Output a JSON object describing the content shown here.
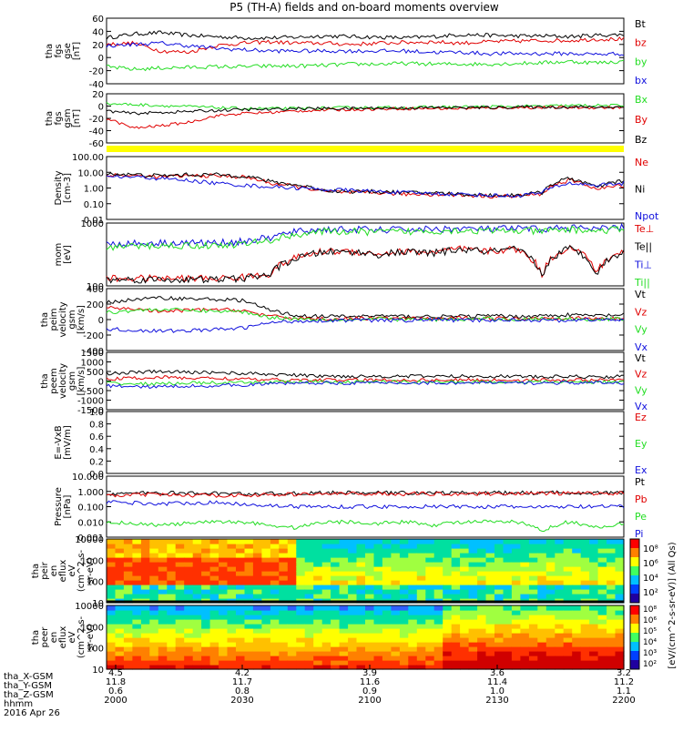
{
  "title": "P5 (TH-A) fields and on-board moments overview",
  "colors": {
    "black": "#000000",
    "red": "#e00000",
    "green": "#22dd22",
    "blue": "#1010dd",
    "yellow": "#ffff00"
  },
  "chart_data": [
    {
      "type": "line",
      "panel": "fgs_gse",
      "ylabel": [
        "tha",
        "fgs",
        "gse",
        "[nT]"
      ],
      "yticks": [
        "60",
        "40",
        "20",
        "0",
        "-20",
        "-40"
      ],
      "ylim": [
        -40,
        60
      ],
      "series": [
        {
          "name": "Bt",
          "color": "#000000",
          "values": [
            30,
            36,
            38,
            34,
            32,
            30,
            30,
            31,
            33,
            32,
            31,
            30,
            32,
            35,
            34,
            33,
            33,
            32,
            34,
            35
          ]
        },
        {
          "name": "bz",
          "color": "#e00000",
          "values": [
            20,
            22,
            10,
            8,
            18,
            22,
            24,
            22,
            22,
            20,
            22,
            23,
            24,
            22,
            24,
            25,
            26,
            26,
            28,
            28
          ]
        },
        {
          "name": "by",
          "color": "#22dd22",
          "values": [
            -14,
            -18,
            -16,
            -15,
            -14,
            -14,
            -13,
            -13,
            -12,
            -10,
            -10,
            -9,
            -10,
            -10,
            -10,
            -9,
            -8,
            -6,
            -8,
            -6
          ]
        },
        {
          "name": "bx",
          "color": "#1010dd",
          "values": [
            18,
            20,
            22,
            18,
            14,
            12,
            10,
            10,
            10,
            10,
            10,
            10,
            8,
            8,
            6,
            6,
            6,
            6,
            5,
            6
          ]
        }
      ]
    },
    {
      "type": "line",
      "panel": "fgs_gsm",
      "ylabel": [
        "tha",
        "fgs",
        "gsm",
        "[nT]"
      ],
      "yticks": [
        "20",
        "0",
        "-20",
        "-40",
        "-60"
      ],
      "ylim": [
        -70,
        30
      ],
      "series": [
        {
          "name": "Bx",
          "color": "#22dd22",
          "values": [
            10,
            8,
            6,
            4,
            2,
            0,
            0,
            0,
            1,
            2,
            2,
            2,
            3,
            3,
            4,
            4,
            5,
            6,
            6,
            6
          ]
        },
        {
          "name": "By",
          "color": "#e00000",
          "values": [
            -20,
            -40,
            -35,
            -28,
            -15,
            -10,
            -8,
            -5,
            -3,
            -2,
            -1,
            0,
            0,
            0,
            1,
            2,
            2,
            2,
            2,
            2
          ]
        },
        {
          "name": "Bz",
          "color": "#000000",
          "values": [
            -5,
            -10,
            -8,
            -6,
            -4,
            -2,
            -2,
            0,
            0,
            0,
            1,
            1,
            2,
            2,
            2,
            3,
            3,
            3,
            3,
            3
          ]
        }
      ]
    },
    {
      "type": "line",
      "panel": "density",
      "ylabel": [
        "Density",
        "[cm-3]"
      ],
      "yticks": [
        "100.00",
        "10.00",
        "1.00",
        "0.10",
        "0.01"
      ],
      "scale": "log",
      "ylim": [
        0.01,
        100
      ],
      "series": [
        {
          "name": "Ne",
          "color": "#e00000",
          "values": [
            7,
            6,
            5,
            6,
            6,
            5,
            2,
            1.2,
            0.6,
            0.5,
            0.5,
            0.4,
            0.4,
            0.35,
            0.3,
            0.3,
            0.4,
            3,
            0.8,
            1.5
          ]
        },
        {
          "name": "Ni",
          "color": "#000000",
          "values": [
            8,
            7,
            6,
            7,
            7,
            6,
            2.5,
            1.5,
            0.7,
            0.6,
            0.6,
            0.5,
            0.5,
            0.4,
            0.35,
            0.35,
            0.5,
            4,
            1,
            3
          ]
        },
        {
          "name": "Npot",
          "color": "#1010dd",
          "values": [
            5,
            5,
            4,
            3,
            2,
            1.5,
            1.2,
            1,
            0.8,
            0.7,
            0.6,
            0.5,
            0.45,
            0.4,
            0.35,
            0.3,
            0.5,
            2,
            1.5,
            2
          ]
        }
      ]
    },
    {
      "type": "line",
      "panel": "mom_temp",
      "ylabel": [
        "mom",
        "[eV]"
      ],
      "yticks": [
        "1000",
        "100"
      ],
      "scale": "log",
      "ylim": [
        30,
        5000
      ],
      "series": [
        {
          "name": "Te⊥",
          "color": "#e00000",
          "values": [
            55,
            55,
            55,
            55,
            55,
            60,
            80,
            300,
            500,
            500,
            400,
            500,
            450,
            600,
            500,
            600,
            60,
            700,
            80,
            500
          ]
        },
        {
          "name": "Te||",
          "color": "#000000",
          "values": [
            50,
            50,
            50,
            50,
            50,
            55,
            75,
            280,
            480,
            480,
            380,
            480,
            430,
            580,
            480,
            580,
            55,
            650,
            75,
            480
          ]
        },
        {
          "name": "Ti⊥",
          "color": "#1010dd",
          "values": [
            900,
            950,
            1000,
            1000,
            1000,
            1100,
            1500,
            2500,
            3000,
            3000,
            2800,
            3000,
            3000,
            3200,
            3000,
            3200,
            3000,
            3500,
            3000,
            3500
          ]
        },
        {
          "name": "Ti||",
          "color": "#22dd22",
          "values": [
            700,
            750,
            800,
            800,
            800,
            900,
            1200,
            2000,
            2500,
            2500,
            2400,
            2500,
            2600,
            2800,
            2600,
            2700,
            2500,
            3000,
            2600,
            3000
          ]
        }
      ]
    },
    {
      "type": "line",
      "panel": "peim_velocity",
      "ylabel": [
        "tha",
        "peim",
        "velocity",
        "gsm",
        "[km/s]"
      ],
      "yticks": [
        "400",
        "200",
        "0",
        "-200",
        "-400"
      ],
      "ylim": [
        -400,
        400
      ],
      "series": [
        {
          "name": "Vt",
          "color": "#000000",
          "values": [
            220,
            260,
            280,
            270,
            260,
            250,
            120,
            50,
            40,
            40,
            50,
            40,
            40,
            40,
            50,
            40,
            50,
            60,
            50,
            60
          ]
        },
        {
          "name": "Vz",
          "color": "#e00000",
          "values": [
            150,
            140,
            100,
            120,
            130,
            120,
            40,
            20,
            10,
            10,
            20,
            10,
            10,
            20,
            20,
            10,
            20,
            20,
            10,
            20
          ]
        },
        {
          "name": "Vy",
          "color": "#22dd22",
          "values": [
            90,
            120,
            130,
            120,
            110,
            100,
            30,
            10,
            0,
            0,
            10,
            0,
            0,
            0,
            10,
            0,
            10,
            10,
            0,
            10
          ]
        },
        {
          "name": "Vx",
          "color": "#1010dd",
          "values": [
            -120,
            -140,
            -150,
            -140,
            -130,
            -110,
            -40,
            -20,
            -10,
            -10,
            -10,
            -10,
            0,
            -10,
            -10,
            0,
            -10,
            -10,
            0,
            -10
          ]
        }
      ]
    },
    {
      "type": "line",
      "panel": "peem_velocity",
      "ylabel": [
        "tha",
        "peem",
        "velocity",
        "gsm",
        "[km/s]"
      ],
      "yticks": [
        "1500",
        "1000",
        "500",
        "0",
        "-500",
        "-1000",
        "-1500"
      ],
      "ylim": [
        -1500,
        1500
      ],
      "series": [
        {
          "name": "Vt",
          "color": "#000000",
          "values": [
            400,
            450,
            500,
            450,
            450,
            400,
            350,
            300,
            250,
            250,
            250,
            250,
            250,
            250,
            250,
            250,
            200,
            250,
            200,
            250
          ]
        },
        {
          "name": "Vz",
          "color": "#e00000",
          "values": [
            100,
            150,
            200,
            150,
            150,
            100,
            50,
            50,
            50,
            50,
            50,
            50,
            50,
            50,
            50,
            50,
            50,
            50,
            50,
            50
          ]
        },
        {
          "name": "Vy",
          "color": "#22dd22",
          "values": [
            -100,
            -150,
            -150,
            -100,
            -100,
            -100,
            -50,
            -50,
            -50,
            -50,
            -50,
            -50,
            -50,
            -50,
            -50,
            -50,
            -50,
            -50,
            -50,
            -50
          ]
        },
        {
          "name": "Vx",
          "color": "#1010dd",
          "values": [
            -250,
            -300,
            -300,
            -250,
            -250,
            -200,
            -150,
            -100,
            -100,
            -100,
            -100,
            -100,
            -100,
            -100,
            -100,
            -100,
            -100,
            -100,
            -100,
            -100
          ]
        }
      ]
    },
    {
      "type": "line",
      "panel": "e_field",
      "ylabel": [
        "E=-VxB",
        "[mV/m]"
      ],
      "yticks": [
        "1.0",
        "0.8",
        "0.6",
        "0.4",
        "0.2",
        "0.0"
      ],
      "ylim": [
        0,
        1
      ],
      "series": [
        {
          "name": "Ez",
          "color": "#e00000",
          "values": []
        },
        {
          "name": "Ey",
          "color": "#22dd22",
          "values": []
        },
        {
          "name": "Ex",
          "color": "#1010dd",
          "values": []
        }
      ]
    },
    {
      "type": "line",
      "panel": "pressure",
      "ylabel": [
        "Pressure",
        "[nPa]"
      ],
      "yticks": [
        "10.000",
        "1.000",
        "0.100",
        "0.010",
        "0.001"
      ],
      "scale": "log",
      "ylim": [
        0.001,
        10
      ],
      "series": [
        {
          "name": "Pt",
          "color": "#000000",
          "values": [
            0.7,
            0.75,
            0.8,
            0.75,
            0.75,
            0.7,
            0.7,
            0.75,
            0.8,
            0.8,
            0.8,
            0.8,
            0.8,
            0.8,
            0.8,
            0.8,
            0.8,
            0.85,
            0.8,
            0.8
          ]
        },
        {
          "name": "Pb",
          "color": "#e00000",
          "values": [
            0.5,
            0.6,
            0.6,
            0.55,
            0.55,
            0.55,
            0.6,
            0.65,
            0.7,
            0.7,
            0.7,
            0.7,
            0.7,
            0.7,
            0.7,
            0.75,
            0.75,
            0.75,
            0.75,
            0.75
          ]
        },
        {
          "name": "Pe",
          "color": "#22dd22",
          "values": [
            0.01,
            0.008,
            0.006,
            0.008,
            0.01,
            0.01,
            0.006,
            0.004,
            0.01,
            0.01,
            0.008,
            0.01,
            0.006,
            0.01,
            0.01,
            0.01,
            0.002,
            0.01,
            0.004,
            0.008
          ]
        },
        {
          "name": "Pi",
          "color": "#1010dd",
          "values": [
            0.2,
            0.18,
            0.15,
            0.18,
            0.18,
            0.15,
            0.12,
            0.1,
            0.1,
            0.1,
            0.1,
            0.1,
            0.1,
            0.1,
            0.1,
            0.1,
            0.09,
            0.1,
            0.1,
            0.1
          ]
        }
      ]
    },
    {
      "type": "heatmap",
      "panel": "peir_en_eflux",
      "ylabel": [
        "tha",
        "peir",
        "en",
        "eflux",
        "eV",
        "(cm^2-s-",
        "sr-eV)"
      ],
      "yticks": [
        "10000",
        "1000",
        "100",
        "10"
      ],
      "scale": "log",
      "ylim": [
        5,
        30000
      ]
    },
    {
      "type": "heatmap",
      "panel": "peer_en_eflux",
      "ylabel": [
        "tha",
        "peer",
        "en",
        "eflux",
        "eV",
        "(cm^2-s-",
        "sr-eV)"
      ],
      "yticks": [
        "10000",
        "1000",
        "100",
        "10"
      ],
      "scale": "log",
      "ylim": [
        5,
        30000
      ]
    }
  ],
  "colorbar": {
    "label": "[eV/(cm^2-s-sr-eV)] (All Qs)",
    "ticks_top": [
      "10⁸",
      "10⁶",
      "10⁴",
      "10²"
    ],
    "ticks_bottom": [
      "10⁸",
      "10⁶",
      "10⁵",
      "10⁴",
      "10³",
      "10²"
    ]
  },
  "xaxis": {
    "row_labels": [
      "tha_X-GSM",
      "tha_Y-GSM",
      "tha_Z-GSM",
      "hhmm",
      "2016 Apr 26"
    ],
    "columns": [
      {
        "values": [
          "4.5",
          "11.8",
          "0.6",
          "2000"
        ]
      },
      {
        "values": [
          "4.2",
          "11.7",
          "0.8",
          "2030"
        ]
      },
      {
        "values": [
          "3.9",
          "11.6",
          "0.9",
          "2100"
        ]
      },
      {
        "values": [
          "3.6",
          "11.4",
          "1.0",
          "2130"
        ]
      },
      {
        "values": [
          "3.2",
          "11.2",
          "1.1",
          "2200"
        ]
      }
    ]
  }
}
